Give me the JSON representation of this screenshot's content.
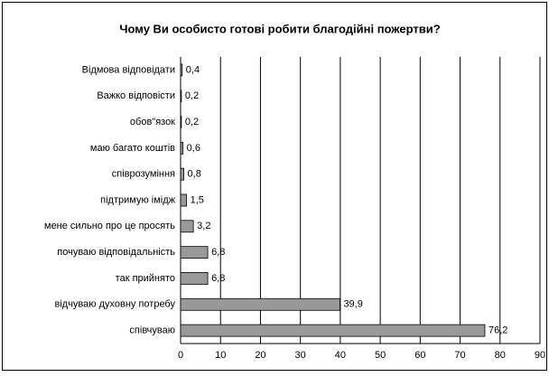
{
  "chart_data": {
    "type": "bar",
    "orientation": "horizontal",
    "title": "Чому Ви особисто готові робити благодійні пожертви?",
    "categories": [
      "Відмова відповідати",
      "Важко відповісти",
      "обов\"язок",
      "маю багато коштів",
      "співрозуміння",
      "підтримую імідж",
      "мене сильно про це просять",
      "почуваю відповідальність",
      "так прийнято",
      "відчуваю духовну потребу",
      "співчуваю"
    ],
    "values": [
      0.4,
      0.2,
      0.2,
      0.6,
      0.8,
      1.5,
      3.2,
      6.8,
      6.8,
      39.9,
      76.2
    ],
    "value_labels": [
      "0,4",
      "0,2",
      "0,2",
      "0,6",
      "0,8",
      "1,5",
      "3,2",
      "6,8",
      "6,8",
      "39,9",
      "76,2"
    ],
    "color": "#999999",
    "xlim": [
      0,
      90
    ],
    "xticks": [
      0,
      10,
      20,
      30,
      40,
      50,
      60,
      70,
      80,
      90
    ],
    "grid": true
  }
}
